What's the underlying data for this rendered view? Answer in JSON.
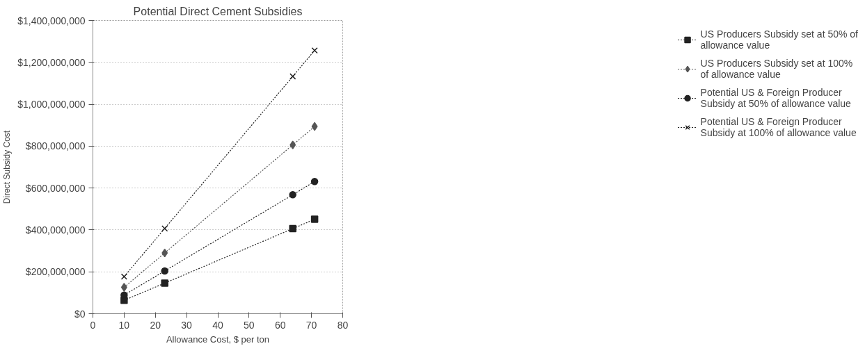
{
  "chart_data": {
    "type": "line",
    "title": "Potential Direct Cement Subsidies",
    "xlabel": "Allowance Cost, $ per ton",
    "ylabel": "Direct Subsidy Cost",
    "x": [
      10,
      23,
      64,
      71
    ],
    "series": [
      {
        "name": "US Producers Subsidy set at 50% of allowance value",
        "color": "#222222",
        "marker": "square",
        "values": [
          64000000,
          146000000,
          406000000,
          451000000
        ]
      },
      {
        "name": "US Producers Subsidy set at 100% of allowance value",
        "color": "#555555",
        "marker": "diamond",
        "values": [
          126000000,
          290000000,
          806000000,
          894000000
        ]
      },
      {
        "name": "Potential US & Foreign Producer Subsidy at 50% of allowance value",
        "color": "#222222",
        "marker": "circle",
        "values": [
          89000000,
          204000000,
          568000000,
          631000000
        ]
      },
      {
        "name": "Potential US & Foreign Producer Subsidy at 100% of allowance value",
        "color": "#222222",
        "marker": "cross",
        "values": [
          177000000,
          407000000,
          1133000000,
          1257000000
        ]
      }
    ],
    "xlim": [
      0,
      80
    ],
    "xticks": [
      0,
      10,
      20,
      30,
      40,
      50,
      60,
      70,
      80
    ],
    "ylim": [
      0,
      1400000000
    ],
    "yticks": [
      {
        "value": 0,
        "label": "$0"
      },
      {
        "value": 200000000,
        "label": "$200,000,000"
      },
      {
        "value": 400000000,
        "label": "$400,000,000"
      },
      {
        "value": 600000000,
        "label": "$600,000,000"
      },
      {
        "value": 800000000,
        "label": "$800,000,000"
      },
      {
        "value": 1000000000,
        "label": "$1,000,000,000"
      },
      {
        "value": 1200000000,
        "label": "$1,200,000,000"
      },
      {
        "value": 1400000000,
        "label": "$1,400,000,000"
      }
    ],
    "grid": "y",
    "legend": "right",
    "line_style": "dotted"
  }
}
